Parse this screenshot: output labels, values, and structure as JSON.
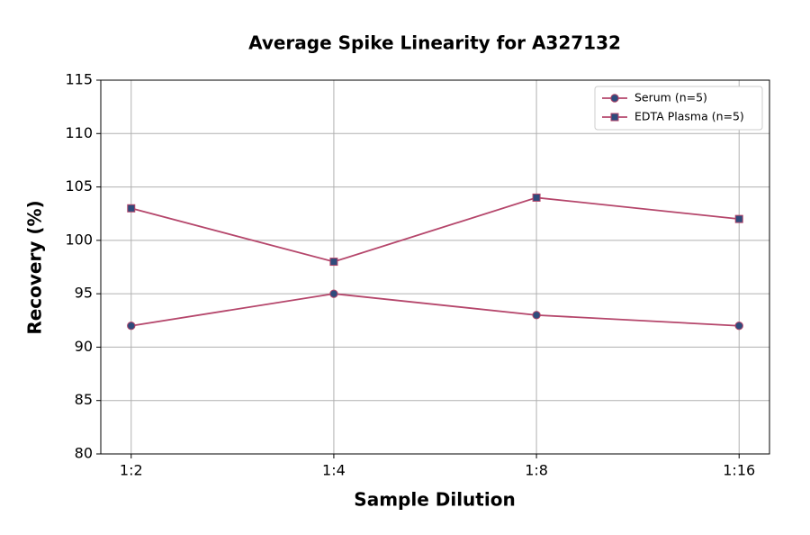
{
  "chart_data": {
    "type": "line",
    "title": "Average Spike Linearity for A327132",
    "x_label": "Sample Dilution",
    "y_label": "Recovery (%)",
    "categories": [
      "1:2",
      "1:4",
      "1:8",
      "1:16"
    ],
    "series": [
      {
        "name": "Serum (n=5)",
        "color": "#b5466b",
        "marker_color": "#2f4b7c",
        "marker": "circle",
        "values": [
          92,
          95,
          93,
          92
        ]
      },
      {
        "name": "EDTA Plasma (n=5)",
        "color": "#b5466b",
        "marker_color": "#2f4b7c",
        "marker": "square",
        "values": [
          103,
          98,
          104,
          102
        ]
      }
    ],
    "ylim": [
      80,
      115
    ],
    "yticks": [
      80,
      85,
      90,
      95,
      100,
      105,
      110,
      115
    ],
    "grid": true,
    "legend": "upper right"
  }
}
